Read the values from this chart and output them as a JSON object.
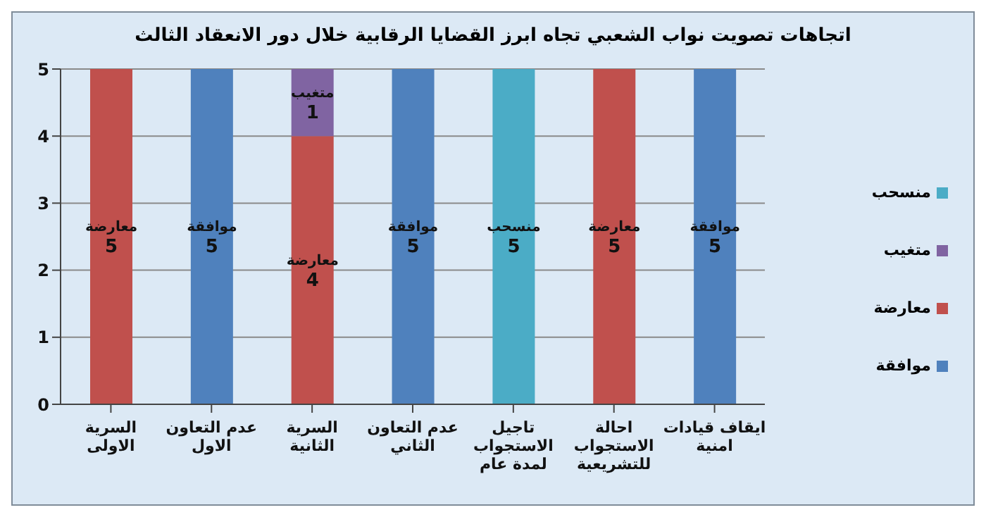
{
  "chart_data": {
    "type": "bar",
    "title": "اتجاهات تصويت نواب الشعبي تجاه ابرز القضايا الرقابية خلال دور الانعقاد الثالث",
    "categories": [
      "السرية الاولى",
      "عدم التعاون الاول",
      "السرية الثانية",
      "عدم التعاون الثاني",
      "تاجيل الاستجواب لمدة عام",
      "احالة الاستجواب للتشريعية",
      "ايقاف قيادات امنية"
    ],
    "stacked": true,
    "series": [
      {
        "name": "موافقة",
        "color": "#4f81bd",
        "values": [
          null,
          5,
          null,
          5,
          null,
          null,
          5
        ]
      },
      {
        "name": "معارضة",
        "color": "#c0504d",
        "values": [
          5,
          null,
          4,
          null,
          null,
          5,
          null
        ]
      },
      {
        "name": "متغيب",
        "color": "#8064a2",
        "values": [
          null,
          null,
          1,
          null,
          null,
          null,
          null
        ]
      },
      {
        "name": "منسحب",
        "color": "#4bacc6",
        "values": [
          null,
          null,
          null,
          null,
          5,
          null,
          null
        ]
      }
    ],
    "ylim": [
      0,
      5
    ],
    "yticks": [
      0,
      1,
      2,
      3,
      4,
      5
    ],
    "grid": "y",
    "legend": "right",
    "data_labels": true
  }
}
